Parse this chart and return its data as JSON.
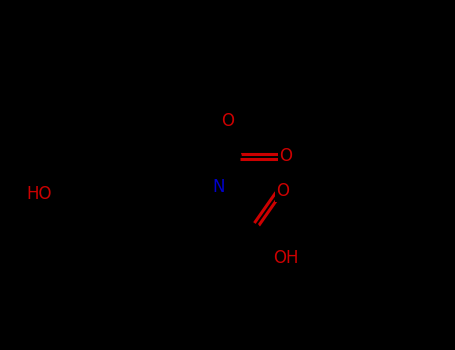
{
  "background_color": "#000000",
  "bond_color": "#000000",
  "nitrogen_color": "#0000CC",
  "oxygen_color": "#CC0000",
  "line_width": 2.2,
  "font_size_atom": 12,
  "fig_width": 4.55,
  "fig_height": 3.5,
  "dpi": 100,
  "xlim": [
    0.0,
    9.0
  ],
  "ylim": [
    1.5,
    8.5
  ]
}
